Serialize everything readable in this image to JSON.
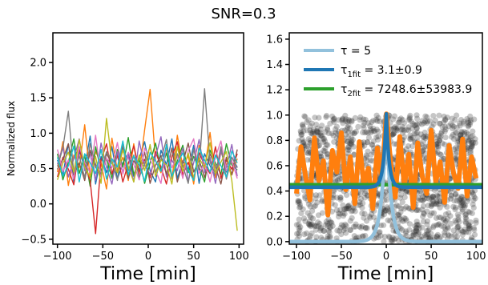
{
  "figure": {
    "suptitle": "SNR=0.3"
  },
  "colors": {
    "axes": "#000000",
    "scatter": "#333333",
    "observed_orange": "#ff7f0e",
    "model_light_blue": "#92c1dc",
    "fit1_blue": "#1f77b4",
    "fit2_green": "#2ca02c",
    "tab10": [
      "#1f77b4",
      "#ff7f0e",
      "#2ca02c",
      "#d62728",
      "#9467bd",
      "#8c564b",
      "#e377c2",
      "#7f7f7f",
      "#bcbd22",
      "#17becf"
    ]
  },
  "chart_data": [
    {
      "type": "line",
      "panel": "left",
      "title": "",
      "xlabel": "Time [min]",
      "ylabel": "Normalized flux",
      "xlim": [
        -105,
        105
      ],
      "ylim": [
        -0.57,
        2.42
      ],
      "xticks": [
        -100,
        -50,
        0,
        50,
        100
      ],
      "xtick_labels": [
        "−100",
        "−50",
        "0",
        "50",
        "100"
      ],
      "yticks": [
        -0.5,
        0.0,
        0.5,
        1.0,
        1.5,
        2.0
      ],
      "ytick_labels": [
        "−0.5",
        "0.0",
        "0.5",
        "1.0",
        "1.5",
        "2.0"
      ],
      "description": "ten noisy light curves sampled every 2 min",
      "series": [
        {
          "color": "#1f77b4",
          "x": [
            -100,
            -94,
            -88,
            -82,
            -76,
            -70,
            -64,
            -58,
            -52,
            -46,
            -40,
            -34,
            -28,
            -22,
            -16,
            -10,
            -4,
            2,
            8,
            14,
            20,
            26,
            32,
            38,
            44,
            50,
            56,
            62,
            68,
            74,
            80,
            86,
            92,
            98
          ],
          "values": [
            0.62,
            0.41,
            0.85,
            0.31,
            0.74,
            0.52,
            0.96,
            0.28,
            0.67,
            0.44,
            0.81,
            0.35,
            0.58,
            0.72,
            0.39,
            0.64,
            0.88,
            0.47,
            0.31,
            0.76,
            0.55,
            0.92,
            0.36,
            0.61,
            0.48,
            0.83,
            0.29,
            0.71,
            0.54,
            0.38,
            0.79,
            0.45,
            0.66,
            0.52
          ]
        },
        {
          "color": "#ff7f0e",
          "x": [
            -100,
            -94,
            -88,
            -82,
            -76,
            -70,
            -64,
            -58,
            -52,
            -46,
            -40,
            -34,
            -28,
            -22,
            -16,
            -10,
            -4,
            2,
            8,
            14,
            20,
            26,
            32,
            38,
            44,
            50,
            56,
            62,
            68,
            74,
            80,
            86,
            92,
            98
          ],
          "values": [
            0.45,
            0.88,
            0.26,
            0.69,
            0.51,
            1.12,
            0.37,
            0.74,
            0.58,
            0.21,
            0.93,
            0.47,
            0.66,
            0.33,
            0.85,
            0.42,
            1.05,
            1.62,
            0.61,
            0.44,
            0.79,
            0.35,
            0.97,
            0.52,
            0.68,
            0.28,
            0.83,
            0.49,
            1.01,
            0.37,
            0.73,
            0.56,
            0.41,
            0.64
          ]
        },
        {
          "color": "#2ca02c",
          "x": [
            -100,
            -94,
            -88,
            -82,
            -76,
            -70,
            -64,
            -58,
            -52,
            -46,
            -40,
            -34,
            -28,
            -22,
            -16,
            -10,
            -4,
            2,
            8,
            14,
            20,
            26,
            32,
            38,
            44,
            50,
            56,
            62,
            68,
            74,
            80,
            86,
            92,
            98
          ],
          "values": [
            0.71,
            0.34,
            0.59,
            0.92,
            0.43,
            0.68,
            0.25,
            0.81,
            0.47,
            0.64,
            0.36,
            0.77,
            0.52,
            0.94,
            0.41,
            0.63,
            0.29,
            0.58,
            0.86,
            0.47,
            0.72,
            0.38,
            0.61,
            0.83,
            0.44,
            0.67,
            0.52,
            0.31,
            0.76,
            0.58,
            0.42,
            0.85,
            0.55,
            0.48
          ]
        },
        {
          "color": "#d62728",
          "x": [
            -100,
            -94,
            -88,
            -82,
            -76,
            -70,
            -64,
            -58,
            -52,
            -46,
            -40,
            -34,
            -28,
            -22,
            -16,
            -10,
            -4,
            2,
            8,
            14,
            20,
            26,
            32,
            38,
            44,
            50,
            56,
            62,
            68,
            74,
            80,
            86,
            92,
            98
          ],
          "values": [
            0.38,
            0.66,
            0.49,
            0.27,
            0.78,
            0.55,
            0.33,
            -0.42,
            0.61,
            0.85,
            0.42,
            0.69,
            0.31,
            0.57,
            0.82,
            0.45,
            0.63,
            0.37,
            0.74,
            0.52,
            0.28,
            0.67,
            0.88,
            0.41,
            0.59,
            0.35,
            0.72,
            0.55,
            0.43,
            0.81,
            0.36,
            0.62,
            0.49,
            0.71
          ]
        },
        {
          "color": "#9467bd",
          "x": [
            -100,
            -94,
            -88,
            -82,
            -76,
            -70,
            -64,
            -58,
            -52,
            -46,
            -40,
            -34,
            -28,
            -22,
            -16,
            -10,
            -4,
            2,
            8,
            14,
            20,
            26,
            32,
            38,
            44,
            50,
            56,
            62,
            68,
            74,
            80,
            86,
            92,
            98
          ],
          "values": [
            0.56,
            0.81,
            0.38,
            0.64,
            0.92,
            0.47,
            0.71,
            0.33,
            0.86,
            0.52,
            0.28,
            0.74,
            0.45,
            0.68,
            0.31,
            0.89,
            0.54,
            0.42,
            0.67,
            0.95,
            0.38,
            0.62,
            0.47,
            0.79,
            0.33,
            0.58,
            0.91,
            0.44,
            0.66,
            0.29,
            0.75,
            0.51,
            0.84,
            0.39
          ]
        },
        {
          "color": "#8c564b",
          "x": [
            -100,
            -94,
            -88,
            -82,
            -76,
            -70,
            -64,
            -58,
            -52,
            -46,
            -40,
            -34,
            -28,
            -22,
            -16,
            -10,
            -4,
            2,
            8,
            14,
            20,
            26,
            32,
            38,
            44,
            50,
            56,
            62,
            68,
            74,
            80,
            86,
            92,
            98
          ],
          "values": [
            0.49,
            0.63,
            0.85,
            0.41,
            0.58,
            0.33,
            0.76,
            0.52,
            0.39,
            0.71,
            0.57,
            0.44,
            0.82,
            0.36,
            0.61,
            0.48,
            0.73,
            0.29,
            0.55,
            0.68,
            0.42,
            0.79,
            0.31,
            0.58,
            0.86,
            0.45,
            0.62,
            0.37,
            0.71,
            0.53,
            0.28,
            0.66,
            0.41,
            0.77
          ]
        },
        {
          "color": "#e377c2",
          "x": [
            -100,
            -94,
            -88,
            -82,
            -76,
            -70,
            -64,
            -58,
            -52,
            -46,
            -40,
            -34,
            -28,
            -22,
            -16,
            -10,
            -4,
            2,
            8,
            14,
            20,
            26,
            32,
            38,
            44,
            50,
            56,
            62,
            68,
            74,
            80,
            86,
            92,
            98
          ],
          "values": [
            0.77,
            0.46,
            0.62,
            0.35,
            0.81,
            0.59,
            0.44,
            0.97,
            0.38,
            0.65,
            0.51,
            0.87,
            0.42,
            0.73,
            0.56,
            0.34,
            0.79,
            0.63,
            0.47,
            0.29,
            0.84,
            0.51,
            0.68,
            0.36,
            0.75,
            0.92,
            0.43,
            0.58,
            0.31,
            0.66,
            0.89,
            0.47,
            0.61,
            0.36
          ]
        },
        {
          "color": "#7f7f7f",
          "x": [
            -100,
            -94,
            -88,
            -82,
            -76,
            -70,
            -64,
            -58,
            -52,
            -46,
            -40,
            -34,
            -28,
            -22,
            -16,
            -10,
            -4,
            2,
            8,
            14,
            20,
            26,
            32,
            38,
            44,
            50,
            56,
            62,
            68,
            74,
            80,
            86,
            92,
            98
          ],
          "values": [
            0.53,
            0.79,
            1.31,
            0.43,
            0.68,
            0.37,
            0.85,
            0.56,
            0.42,
            0.74,
            0.61,
            0.33,
            0.88,
            0.47,
            0.69,
            0.38,
            0.57,
            0.82,
            0.45,
            0.63,
            0.91,
            0.36,
            0.71,
            0.54,
            0.29,
            0.77,
            0.48,
            1.63,
            0.59,
            0.42,
            0.81,
            0.35,
            0.66,
            0.51
          ]
        },
        {
          "color": "#bcbd22",
          "x": [
            -100,
            -94,
            -88,
            -82,
            -76,
            -70,
            -64,
            -58,
            -52,
            -46,
            -40,
            -34,
            -28,
            -22,
            -16,
            -10,
            -4,
            2,
            8,
            14,
            20,
            26,
            32,
            38,
            44,
            50,
            56,
            62,
            68,
            74,
            80,
            86,
            92,
            98
          ],
          "values": [
            0.34,
            0.58,
            0.73,
            0.45,
            0.91,
            0.52,
            0.38,
            0.67,
            0.29,
            1.21,
            0.58,
            0.44,
            0.76,
            0.53,
            0.31,
            0.69,
            0.47,
            0.84,
            0.39,
            0.62,
            0.55,
            0.28,
            0.81,
            0.46,
            0.72,
            0.37,
            0.65,
            0.51,
            0.87,
            0.43,
            0.59,
            0.74,
            0.33,
            -0.38
          ]
        },
        {
          "color": "#17becf",
          "x": [
            -100,
            -94,
            -88,
            -82,
            -76,
            -70,
            -64,
            -58,
            -52,
            -46,
            -40,
            -34,
            -28,
            -22,
            -16,
            -10,
            -4,
            2,
            8,
            14,
            20,
            26,
            32,
            38,
            44,
            50,
            56,
            62,
            68,
            74,
            80,
            86,
            92,
            98
          ],
          "values": [
            0.66,
            0.39,
            0.54,
            0.82,
            0.31,
            0.71,
            0.58,
            0.43,
            0.77,
            0.35,
            0.64,
            0.52,
            0.89,
            0.41,
            0.68,
            0.55,
            0.32,
            0.73,
            0.61,
            0.46,
            0.84,
            0.39,
            0.57,
            0.72,
            0.48,
            0.33,
            0.79,
            0.62,
            0.45,
            0.69,
            0.54,
            0.38,
            0.75,
            0.58
          ]
        }
      ]
    },
    {
      "type": "scatter",
      "panel": "right",
      "title": "",
      "xlabel": "Time [min]",
      "ylabel": "",
      "xlim": [
        -108,
        107
      ],
      "ylim": [
        -0.02,
        1.65
      ],
      "xticks": [
        -100,
        -50,
        0,
        50,
        100
      ],
      "xtick_labels": [
        "−100",
        "−50",
        "0",
        "50",
        "100"
      ],
      "yticks": [
        0.0,
        0.2,
        0.4,
        0.6,
        0.8,
        1.0,
        1.2,
        1.4,
        1.6
      ],
      "ytick_labels": [
        "0.0",
        "0.2",
        "0.4",
        "0.6",
        "0.8",
        "1.0",
        "1.2",
        "1.4",
        "1.6"
      ],
      "scatter_description": "dense grey scatter of individual measurements, roughly uniform between 0.0 and 1.0 across the full time range",
      "scatter_range": {
        "x": [
          -100,
          100
        ],
        "y": [
          0.0,
          1.0
        ]
      },
      "orange_x": [
        -100,
        -95,
        -90,
        -85,
        -80,
        -75,
        -70,
        -65,
        -60,
        -55,
        -50,
        -45,
        -40,
        -35,
        -30,
        -25,
        -20,
        -15,
        -10,
        -5,
        0,
        5,
        10,
        15,
        20,
        25,
        30,
        35,
        40,
        45,
        50,
        55,
        60,
        65,
        70,
        75,
        80,
        85,
        90,
        95,
        100
      ],
      "orange_values": [
        0.38,
        0.75,
        0.52,
        0.33,
        0.82,
        0.48,
        0.64,
        0.21,
        0.72,
        0.55,
        0.86,
        0.41,
        0.67,
        0.3,
        0.79,
        0.45,
        0.58,
        0.26,
        0.74,
        0.49,
        1.01,
        0.61,
        0.35,
        0.83,
        0.44,
        0.69,
        0.27,
        0.78,
        0.52,
        0.38,
        0.88,
        0.47,
        0.63,
        0.31,
        0.76,
        0.54,
        0.42,
        0.81,
        0.36,
        0.67,
        0.5
      ],
      "legend": {
        "location": "upper-left",
        "entries": [
          {
            "label_main": "τ",
            "label_sub": "",
            "label_rest": " = 5",
            "color": "#92c1dc"
          },
          {
            "label_main": "τ",
            "label_sub": "1fit",
            "label_rest": " = 3.1±0.9",
            "color": "#1f77b4"
          },
          {
            "label_main": "τ",
            "label_sub": "2fit",
            "label_rest": " = 7248.6±53983.9",
            "color": "#2ca02c"
          }
        ]
      },
      "model_curves": [
        {
          "name": "τ = 5",
          "color": "#92c1dc",
          "kind": "exp-symmetric",
          "tau": 5,
          "amplitude": 1.0,
          "baseline": 0.0
        },
        {
          "name": "τ1fit = 3.1±0.9",
          "color": "#1f77b4",
          "kind": "exp-symmetric",
          "tau": 3.1,
          "amplitude": 0.58,
          "baseline": 0.43
        },
        {
          "name": "τ2fit = 7248.6±53983.9",
          "color": "#2ca02c",
          "kind": "exp-symmetric",
          "tau": 7248.6,
          "amplitude": 0.02,
          "baseline": 0.43
        }
      ]
    }
  ]
}
